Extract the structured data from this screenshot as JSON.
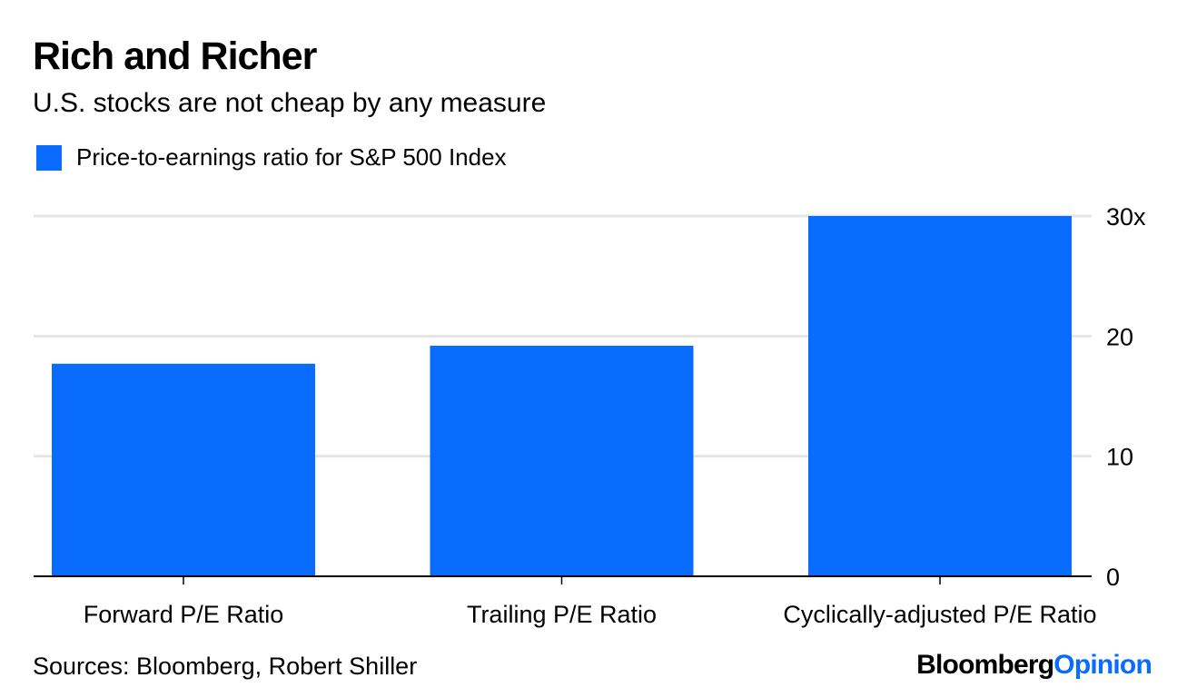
{
  "title": "Rich and Richer",
  "subtitle": "U.S. stocks are not cheap by any measure",
  "colors": {
    "bar": "#0a6cff",
    "grid": "#e6e6e6",
    "axis": "#000000"
  },
  "chart_data": {
    "type": "bar",
    "categories": [
      "Forward P/E Ratio",
      "Trailing P/E Ratio",
      "Cyclically-adjusted P/E Ratio"
    ],
    "series": [
      {
        "name": "Price-to-earnings ratio for S&P 500 Index",
        "values": [
          17.7,
          19.2,
          30.0
        ]
      }
    ],
    "ylim": [
      0,
      30
    ],
    "yticks": [
      0,
      10,
      20,
      30
    ],
    "ytick_labels": [
      "0",
      "10",
      "20",
      "30x"
    ],
    "y_axis_side": "right",
    "grid": true,
    "legend": "top-left"
  },
  "footer": {
    "source": "Sources: Bloomberg, Robert Shiller",
    "brand_primary": "Bloomberg",
    "brand_secondary": "Opinion"
  }
}
